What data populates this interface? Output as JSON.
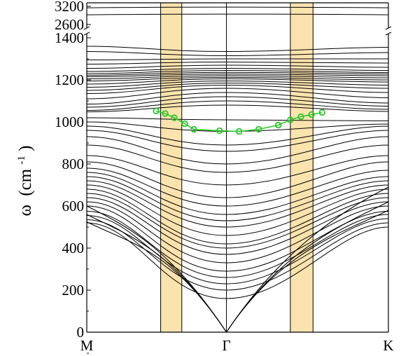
{
  "chart_data": {
    "type": "line",
    "title": "",
    "xlabel": "",
    "ylabel": {
      "symbol": "ω",
      "unit_open": "(cm",
      "unit_exp": "-1",
      "unit_close": ")"
    },
    "x_ticks": [
      "M",
      "Γ",
      "K"
    ],
    "y_ticks_lower": [
      0,
      200,
      400,
      600,
      800,
      1000,
      1200,
      1400
    ],
    "y_ticks_upper": [
      2600,
      3200
    ],
    "ylim_lower": [
      0,
      1420
    ],
    "ylim_upper": [
      2600,
      3200
    ],
    "grid": false,
    "highlight_regions": [
      {
        "x_from": 0.245,
        "x_to": 0.315,
        "color": "#fbe3ad"
      },
      {
        "x_from": 0.675,
        "x_to": 0.75,
        "color": "#fbe3ad"
      }
    ],
    "highlight_series": {
      "name": "",
      "color": "#2ec82e",
      "x": [
        0.23,
        0.26,
        0.29,
        0.325,
        0.355,
        0.44,
        0.505,
        0.57,
        0.635,
        0.675,
        0.71,
        0.745,
        0.78
      ],
      "y": [
        1052,
        1040,
        1020,
        992,
        965,
        958,
        955,
        965,
        985,
        1010,
        1025,
        1035,
        1045
      ]
    },
    "upper_flat_bands": [
      3150,
      2920
    ],
    "optical_top_bands": [
      {
        "m": 1360,
        "g": 1335,
        "k": 1355
      },
      {
        "m": 1335,
        "g": 1315,
        "k": 1330
      },
      {
        "m": 1295,
        "g": 1300,
        "k": 1300
      },
      {
        "m": 1275,
        "g": 1285,
        "k": 1280
      },
      {
        "m": 1255,
        "g": 1270,
        "k": 1260
      },
      {
        "m": 1240,
        "g": 1255,
        "k": 1245
      },
      {
        "m": 1230,
        "g": 1245,
        "k": 1235
      },
      {
        "m": 1222,
        "g": 1236,
        "k": 1228
      },
      {
        "m": 1215,
        "g": 1228,
        "k": 1220
      },
      {
        "m": 1205,
        "g": 1220,
        "k": 1210
      },
      {
        "m": 1195,
        "g": 1212,
        "k": 1200
      },
      {
        "m": 1180,
        "g": 1205,
        "k": 1190
      },
      {
        "m": 1165,
        "g": 1195,
        "k": 1175
      },
      {
        "m": 1150,
        "g": 1185,
        "k": 1160
      },
      {
        "m": 1135,
        "g": 1175,
        "k": 1140
      },
      {
        "m": 1110,
        "g": 1160,
        "k": 1115
      },
      {
        "m": 1085,
        "g": 1140,
        "k": 1090
      },
      {
        "m": 1070,
        "g": 1120,
        "k": 1075
      },
      {
        "m": 1055,
        "g": 1100,
        "k": 1060
      },
      {
        "m": 1048,
        "g": 1080,
        "k": 1050
      }
    ],
    "mid_bands": [
      {
        "m": 1020,
        "g": 1010,
        "k": 1005
      },
      {
        "m": 1000,
        "g": 955,
        "k": 990
      },
      {
        "m": 980,
        "g": 890,
        "k": 980
      },
      {
        "m": 960,
        "g": 860,
        "k": 960
      },
      {
        "m": 930,
        "g": 800,
        "k": 930
      },
      {
        "m": 890,
        "g": 760,
        "k": 890
      },
      {
        "m": 840,
        "g": 700,
        "k": 840
      },
      {
        "m": 810,
        "g": 640,
        "k": 810
      },
      {
        "m": 780,
        "g": 600,
        "k": 770
      },
      {
        "m": 760,
        "g": 560,
        "k": 740
      },
      {
        "m": 740,
        "g": 530,
        "k": 720
      },
      {
        "m": 720,
        "g": 500,
        "k": 700
      },
      {
        "m": 700,
        "g": 460,
        "k": 680
      },
      {
        "m": 680,
        "g": 420,
        "k": 660
      },
      {
        "m": 660,
        "g": 400,
        "k": 640
      },
      {
        "m": 640,
        "g": 370,
        "k": 620
      },
      {
        "m": 620,
        "g": 330,
        "k": 600
      },
      {
        "m": 600,
        "g": 290,
        "k": 575
      },
      {
        "m": 575,
        "g": 260,
        "k": 560
      },
      {
        "m": 555,
        "g": 230,
        "k": 540
      },
      {
        "m": 535,
        "g": 200,
        "k": 520
      },
      {
        "m": 520,
        "g": 160,
        "k": 500
      }
    ],
    "acoustic_bands": [
      {
        "m": 525,
        "k": 580
      },
      {
        "m": 560,
        "k": 620
      },
      {
        "m": 600,
        "k": 690
      }
    ]
  }
}
